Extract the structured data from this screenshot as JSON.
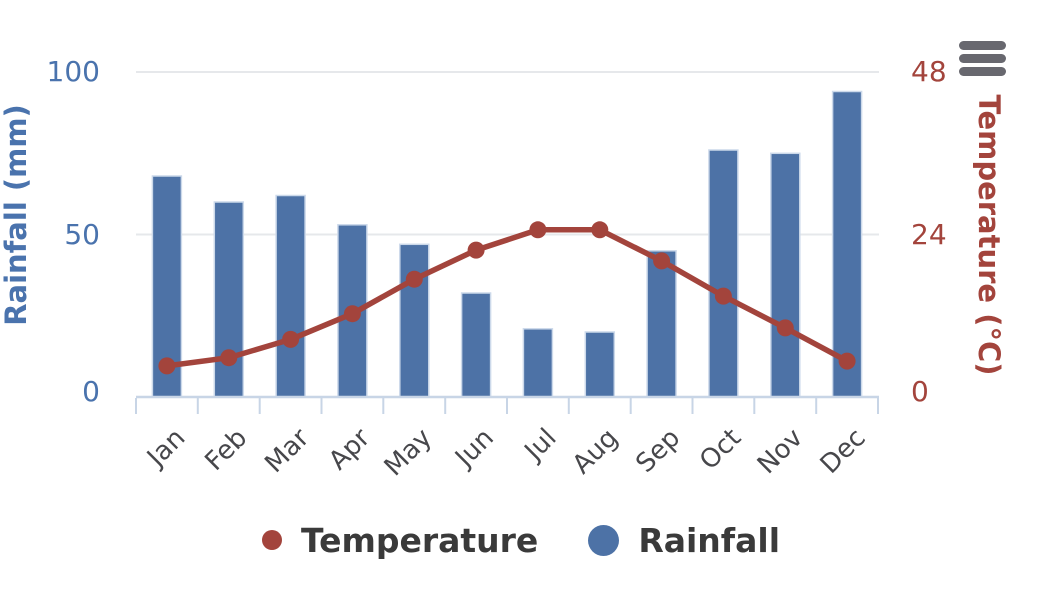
{
  "chart_data": {
    "type": "combo",
    "categories": [
      "Jan",
      "Feb",
      "Mar",
      "Apr",
      "May",
      "Jun",
      "Jul",
      "Aug",
      "Sep",
      "Oct",
      "Nov",
      "Dec"
    ],
    "series": [
      {
        "name": "Temperature",
        "type": "line",
        "axis": "right",
        "color": "#a3443c",
        "values": [
          4.6,
          5.8,
          8.5,
          12.3,
          17.4,
          21.7,
          24.7,
          24.7,
          20.1,
          14.9,
          10.2,
          5.3
        ],
        "legend_marker_diameter": 20
      },
      {
        "name": "Rainfall",
        "type": "bar",
        "axis": "left",
        "color": "#4d72a6",
        "values": [
          68,
          60,
          62,
          53,
          47,
          32,
          21,
          20,
          45,
          76,
          75,
          94
        ],
        "legend_marker_diameter": 31
      }
    ],
    "left_axis": {
      "label": "Rainfall (mm)",
      "range": [
        0,
        100
      ],
      "ticks": [
        0,
        50,
        100
      ]
    },
    "right_axis": {
      "label": "Temperature (°C)",
      "range": [
        0,
        48
      ],
      "ticks": [
        0,
        24,
        48
      ]
    },
    "x_label_rotation": -45,
    "grid": true,
    "legend_position": "bottom"
  },
  "theme": {
    "left_axis_text": "#4a73ad",
    "right_axis_text": "#a3443c",
    "bar_fill": "#4d72a6",
    "bar_border": "#ccd9ea",
    "line_color": "#a3443c",
    "grid_color": "#e6e8eb",
    "axis_line_color": "#c8d5e6",
    "x_label_color": "#47474b",
    "legend_text_color": "#3a3a3a",
    "menu_icon_color": "#68686f",
    "background": "#ffffff"
  },
  "menu": {
    "icon": "hamburger-icon"
  }
}
